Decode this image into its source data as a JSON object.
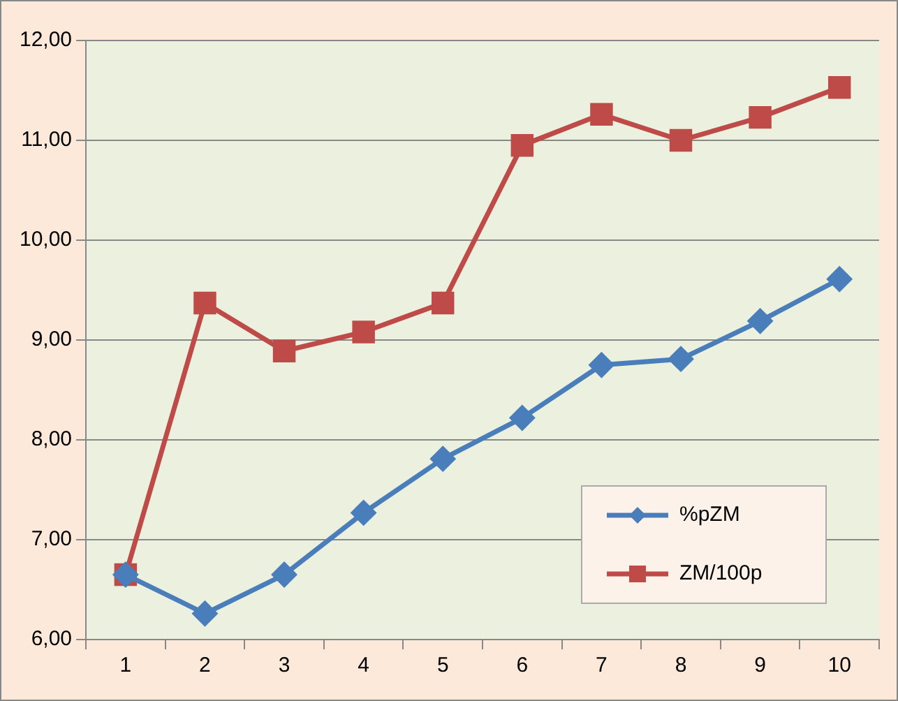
{
  "chart_data": {
    "type": "line",
    "categories": [
      "1",
      "2",
      "3",
      "4",
      "5",
      "6",
      "7",
      "8",
      "9",
      "10"
    ],
    "series": [
      {
        "name": "%pZM",
        "color": "#4a7ebb",
        "marker": "diamond",
        "values": [
          6.65,
          6.26,
          6.65,
          7.27,
          7.81,
          8.22,
          8.75,
          8.81,
          9.19,
          9.61
        ]
      },
      {
        "name": "ZM/100p",
        "color": "#be4b48",
        "marker": "square",
        "values": [
          6.65,
          9.37,
          8.89,
          9.08,
          9.37,
          10.95,
          11.26,
          11.0,
          11.23,
          11.53
        ]
      }
    ],
    "ylim": [
      6,
      12
    ],
    "yticks": [
      {
        "value": 6,
        "label": "6,00"
      },
      {
        "value": 7,
        "label": "7,00"
      },
      {
        "value": 8,
        "label": "8,00"
      },
      {
        "value": 9,
        "label": "9,00"
      },
      {
        "value": 10,
        "label": "10,00"
      },
      {
        "value": 11,
        "label": "11,00"
      },
      {
        "value": 12,
        "label": "12,00"
      }
    ],
    "grid": "y",
    "legend": "bottom right",
    "line_style": "solid"
  }
}
